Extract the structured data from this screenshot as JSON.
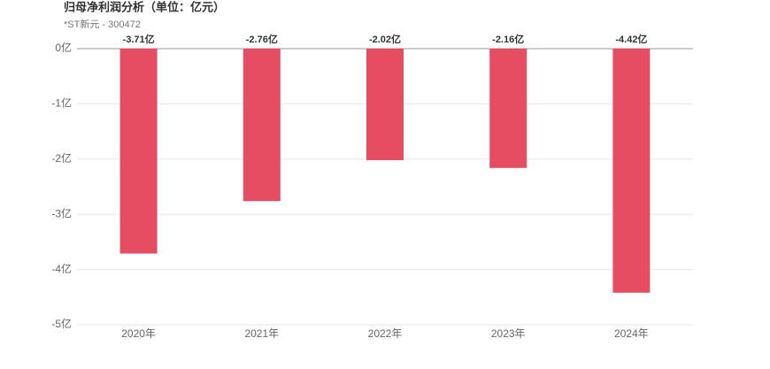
{
  "chart_data": {
    "type": "bar",
    "title": "归母净利润分析（单位：亿元）",
    "subtitle": "*ST新元 - 300472",
    "categories": [
      "2020年",
      "2021年",
      "2022年",
      "2023年",
      "2024年"
    ],
    "values": [
      -3.71,
      -2.76,
      -2.02,
      -2.16,
      -4.42
    ],
    "value_labels": [
      "-3.71亿",
      "-2.76亿",
      "-2.02亿",
      "-2.16亿",
      "-4.42亿"
    ],
    "color": "#e64c62",
    "ylim": [
      -5,
      0
    ],
    "yticks": [
      {
        "value": 0,
        "label": "0亿"
      },
      {
        "value": -1,
        "label": "-1亿"
      },
      {
        "value": -2,
        "label": "-2亿"
      },
      {
        "value": -3,
        "label": "-3亿"
      },
      {
        "value": -4,
        "label": "-4亿"
      },
      {
        "value": -5,
        "label": "-5亿"
      }
    ],
    "grid": true
  }
}
